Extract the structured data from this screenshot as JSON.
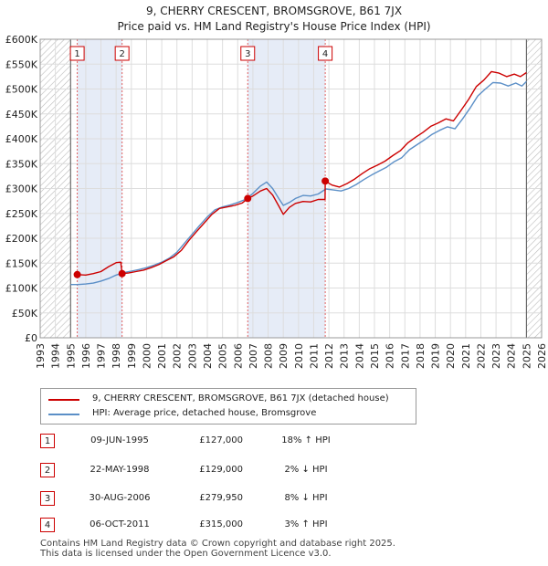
{
  "chart_data": {
    "type": "line",
    "title": "9, CHERRY CRESCENT, BROMSGROVE, B61 7JX",
    "subtitle": "Price paid vs. HM Land Registry's House Price Index (HPI)",
    "xlim": [
      1993,
      2026
    ],
    "ylim": [
      0,
      600000
    ],
    "x_ticks": [
      "1993",
      "1994",
      "1995",
      "1996",
      "1997",
      "1998",
      "1999",
      "2000",
      "2001",
      "2002",
      "2003",
      "2004",
      "2005",
      "2006",
      "2007",
      "2008",
      "2009",
      "2010",
      "2011",
      "2012",
      "2013",
      "2014",
      "2015",
      "2016",
      "2017",
      "2018",
      "2019",
      "2020",
      "2021",
      "2022",
      "2023",
      "2024",
      "2025",
      "2026"
    ],
    "y_ticks": [
      {
        "value": 0,
        "label": "£0"
      },
      {
        "value": 50000,
        "label": "£50K"
      },
      {
        "value": 100000,
        "label": "£100K"
      },
      {
        "value": 150000,
        "label": "£150K"
      },
      {
        "value": 200000,
        "label": "£200K"
      },
      {
        "value": 250000,
        "label": "£250K"
      },
      {
        "value": 300000,
        "label": "£300K"
      },
      {
        "value": 350000,
        "label": "£350K"
      },
      {
        "value": 400000,
        "label": "£400K"
      },
      {
        "value": 450000,
        "label": "£450K"
      },
      {
        "value": 500000,
        "label": "£500K"
      },
      {
        "value": 550000,
        "label": "£550K"
      },
      {
        "value": 600000,
        "label": "£600K"
      }
    ],
    "grid": true,
    "hatched_ranges": [
      [
        1993,
        1995.0
      ],
      [
        2025.0,
        2026
      ]
    ],
    "shaded_ranges": [
      [
        1995.44,
        1998.39
      ],
      [
        2006.66,
        2011.76
      ]
    ],
    "series": [
      {
        "name": "9, CHERRY CRESCENT, BROMSGROVE, B61 7JX (detached house)",
        "color": "#cc0000",
        "points": [
          [
            1995.44,
            127000
          ],
          [
            1996.0,
            126000
          ],
          [
            1996.5,
            129000
          ],
          [
            1997.0,
            133000
          ],
          [
            1997.5,
            143000
          ],
          [
            1998.0,
            151000
          ],
          [
            1998.3,
            152000
          ],
          [
            1998.39,
            129000
          ],
          [
            1998.8,
            130000
          ],
          [
            1999.3,
            133000
          ],
          [
            1999.8,
            136000
          ],
          [
            2000.3,
            141000
          ],
          [
            2000.8,
            147000
          ],
          [
            2001.3,
            155000
          ],
          [
            2001.8,
            163000
          ],
          [
            2002.3,
            176000
          ],
          [
            2002.8,
            196000
          ],
          [
            2003.3,
            214000
          ],
          [
            2003.8,
            231000
          ],
          [
            2004.3,
            248000
          ],
          [
            2004.8,
            260000
          ],
          [
            2005.3,
            263000
          ],
          [
            2005.8,
            266000
          ],
          [
            2006.3,
            271000
          ],
          [
            2006.66,
            279950
          ],
          [
            2007.0,
            285000
          ],
          [
            2007.5,
            295000
          ],
          [
            2007.9,
            300000
          ],
          [
            2008.3,
            287000
          ],
          [
            2008.7,
            265000
          ],
          [
            2009.0,
            248000
          ],
          [
            2009.4,
            262000
          ],
          [
            2009.8,
            270000
          ],
          [
            2010.3,
            274000
          ],
          [
            2010.8,
            273000
          ],
          [
            2011.3,
            278000
          ],
          [
            2011.75,
            278000
          ],
          [
            2011.76,
            315000
          ],
          [
            2012.2,
            307000
          ],
          [
            2012.7,
            303000
          ],
          [
            2013.2,
            310000
          ],
          [
            2013.7,
            319000
          ],
          [
            2014.2,
            330000
          ],
          [
            2014.7,
            340000
          ],
          [
            2015.2,
            347000
          ],
          [
            2015.7,
            355000
          ],
          [
            2016.2,
            366000
          ],
          [
            2016.7,
            376000
          ],
          [
            2017.2,
            392000
          ],
          [
            2017.7,
            403000
          ],
          [
            2018.2,
            413000
          ],
          [
            2018.7,
            425000
          ],
          [
            2019.2,
            432000
          ],
          [
            2019.7,
            440000
          ],
          [
            2020.2,
            436000
          ],
          [
            2020.7,
            457000
          ],
          [
            2021.2,
            479000
          ],
          [
            2021.7,
            505000
          ],
          [
            2022.2,
            518000
          ],
          [
            2022.7,
            535000
          ],
          [
            2023.2,
            532000
          ],
          [
            2023.7,
            525000
          ],
          [
            2024.2,
            530000
          ],
          [
            2024.6,
            525000
          ],
          [
            2025.0,
            533000
          ]
        ]
      },
      {
        "name": "HPI: Average price, detached house, Bromsgrove",
        "color": "#5b8fc7",
        "points": [
          [
            1995.0,
            107000
          ],
          [
            1995.5,
            107000
          ],
          [
            1996.0,
            108000
          ],
          [
            1996.5,
            110000
          ],
          [
            1997.0,
            114000
          ],
          [
            1997.5,
            119000
          ],
          [
            1998.0,
            126000
          ],
          [
            1998.5,
            131000
          ],
          [
            1999.0,
            134000
          ],
          [
            1999.5,
            137000
          ],
          [
            2000.0,
            141000
          ],
          [
            2000.5,
            146000
          ],
          [
            2001.0,
            152000
          ],
          [
            2001.5,
            160000
          ],
          [
            2002.0,
            172000
          ],
          [
            2002.5,
            190000
          ],
          [
            2003.0,
            208000
          ],
          [
            2003.5,
            226000
          ],
          [
            2004.0,
            243000
          ],
          [
            2004.5,
            257000
          ],
          [
            2005.0,
            263000
          ],
          [
            2005.5,
            267000
          ],
          [
            2006.0,
            272000
          ],
          [
            2006.5,
            278000
          ],
          [
            2007.0,
            290000
          ],
          [
            2007.5,
            305000
          ],
          [
            2007.9,
            313000
          ],
          [
            2008.3,
            300000
          ],
          [
            2008.7,
            280000
          ],
          [
            2009.0,
            266000
          ],
          [
            2009.4,
            272000
          ],
          [
            2009.8,
            280000
          ],
          [
            2010.3,
            286000
          ],
          [
            2010.8,
            285000
          ],
          [
            2011.3,
            289000
          ],
          [
            2011.8,
            299000
          ],
          [
            2012.3,
            297000
          ],
          [
            2012.8,
            295000
          ],
          [
            2013.3,
            300000
          ],
          [
            2013.8,
            308000
          ],
          [
            2014.3,
            318000
          ],
          [
            2014.8,
            327000
          ],
          [
            2015.3,
            335000
          ],
          [
            2015.8,
            343000
          ],
          [
            2016.3,
            354000
          ],
          [
            2016.8,
            362000
          ],
          [
            2017.3,
            378000
          ],
          [
            2017.8,
            388000
          ],
          [
            2018.3,
            398000
          ],
          [
            2018.8,
            409000
          ],
          [
            2019.3,
            417000
          ],
          [
            2019.8,
            424000
          ],
          [
            2020.3,
            420000
          ],
          [
            2020.8,
            440000
          ],
          [
            2021.3,
            462000
          ],
          [
            2021.8,
            486000
          ],
          [
            2022.3,
            500000
          ],
          [
            2022.8,
            513000
          ],
          [
            2023.3,
            512000
          ],
          [
            2023.8,
            506000
          ],
          [
            2024.3,
            512000
          ],
          [
            2024.7,
            506000
          ],
          [
            2025.0,
            515000
          ]
        ]
      }
    ],
    "sales": [
      {
        "num": "1",
        "x": 1995.44,
        "price": 127000
      },
      {
        "num": "2",
        "x": 1998.39,
        "price": 129000
      },
      {
        "num": "3",
        "x": 2006.66,
        "price": 279950
      },
      {
        "num": "4",
        "x": 2011.76,
        "price": 315000
      }
    ]
  },
  "legend": {
    "items": [
      {
        "label": "9, CHERRY CRESCENT, BROMSGROVE, B61 7JX (detached house)",
        "color": "#cc0000"
      },
      {
        "label": "HPI: Average price, detached house, Bromsgrove",
        "color": "#5b8fc7"
      }
    ]
  },
  "table": {
    "rows": [
      {
        "num": "1",
        "date": "09-JUN-1995",
        "price": "£127,000",
        "hpi": "18% ↑ HPI"
      },
      {
        "num": "2",
        "date": "22-MAY-1998",
        "price": "£129,000",
        "hpi": "2% ↓ HPI"
      },
      {
        "num": "3",
        "date": "30-AUG-2006",
        "price": "£279,950",
        "hpi": "8% ↓ HPI"
      },
      {
        "num": "4",
        "date": "06-OCT-2011",
        "price": "£315,000",
        "hpi": "3% ↑ HPI"
      }
    ]
  },
  "footer": {
    "line1": "Contains HM Land Registry data © Crown copyright and database right 2025.",
    "line2": "This data is licensed under the Open Government Licence v3.0."
  }
}
